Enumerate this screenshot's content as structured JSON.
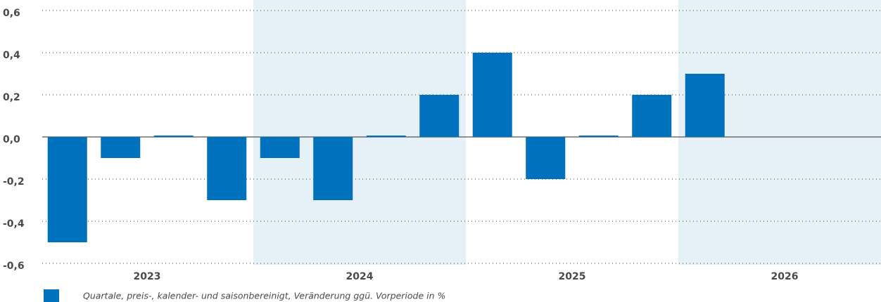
{
  "chart_data": {
    "type": "bar",
    "categories": [
      null,
      null,
      null,
      null,
      null,
      null,
      null,
      null,
      null,
      null,
      null,
      null,
      null,
      null,
      null,
      null
    ],
    "groups": [
      "2023",
      "2024",
      "2025",
      "2026"
    ],
    "shaded_groups": [
      1,
      3
    ],
    "band_color": "#e6f0f7",
    "series": [
      {
        "name": "Quartale, preis-, kalender- und saisonbereinigt, Veränderung ggü. Vorperiode in %",
        "color": "#0071bc",
        "values": [
          -0.5,
          -0.1,
          0.0,
          -0.3,
          -0.1,
          -0.3,
          0.0,
          0.2,
          0.4,
          -0.2,
          0.0,
          0.2,
          0.3,
          null,
          null,
          null
        ]
      }
    ],
    "ylim": [
      -0.6,
      0.6
    ],
    "yticks": [
      {
        "value": -0.6,
        "label": "-0,6"
      },
      {
        "value": -0.4,
        "label": "-0,4"
      },
      {
        "value": -0.2,
        "label": "-0,2"
      },
      {
        "value": 0,
        "label": "0,0"
      },
      {
        "value": 0.2,
        "label": "0,2"
      },
      {
        "value": 0.4,
        "label": "0,4"
      },
      {
        "value": 0.6,
        "label": "0,6"
      }
    ],
    "grid": true,
    "legend": "bottom-left"
  }
}
